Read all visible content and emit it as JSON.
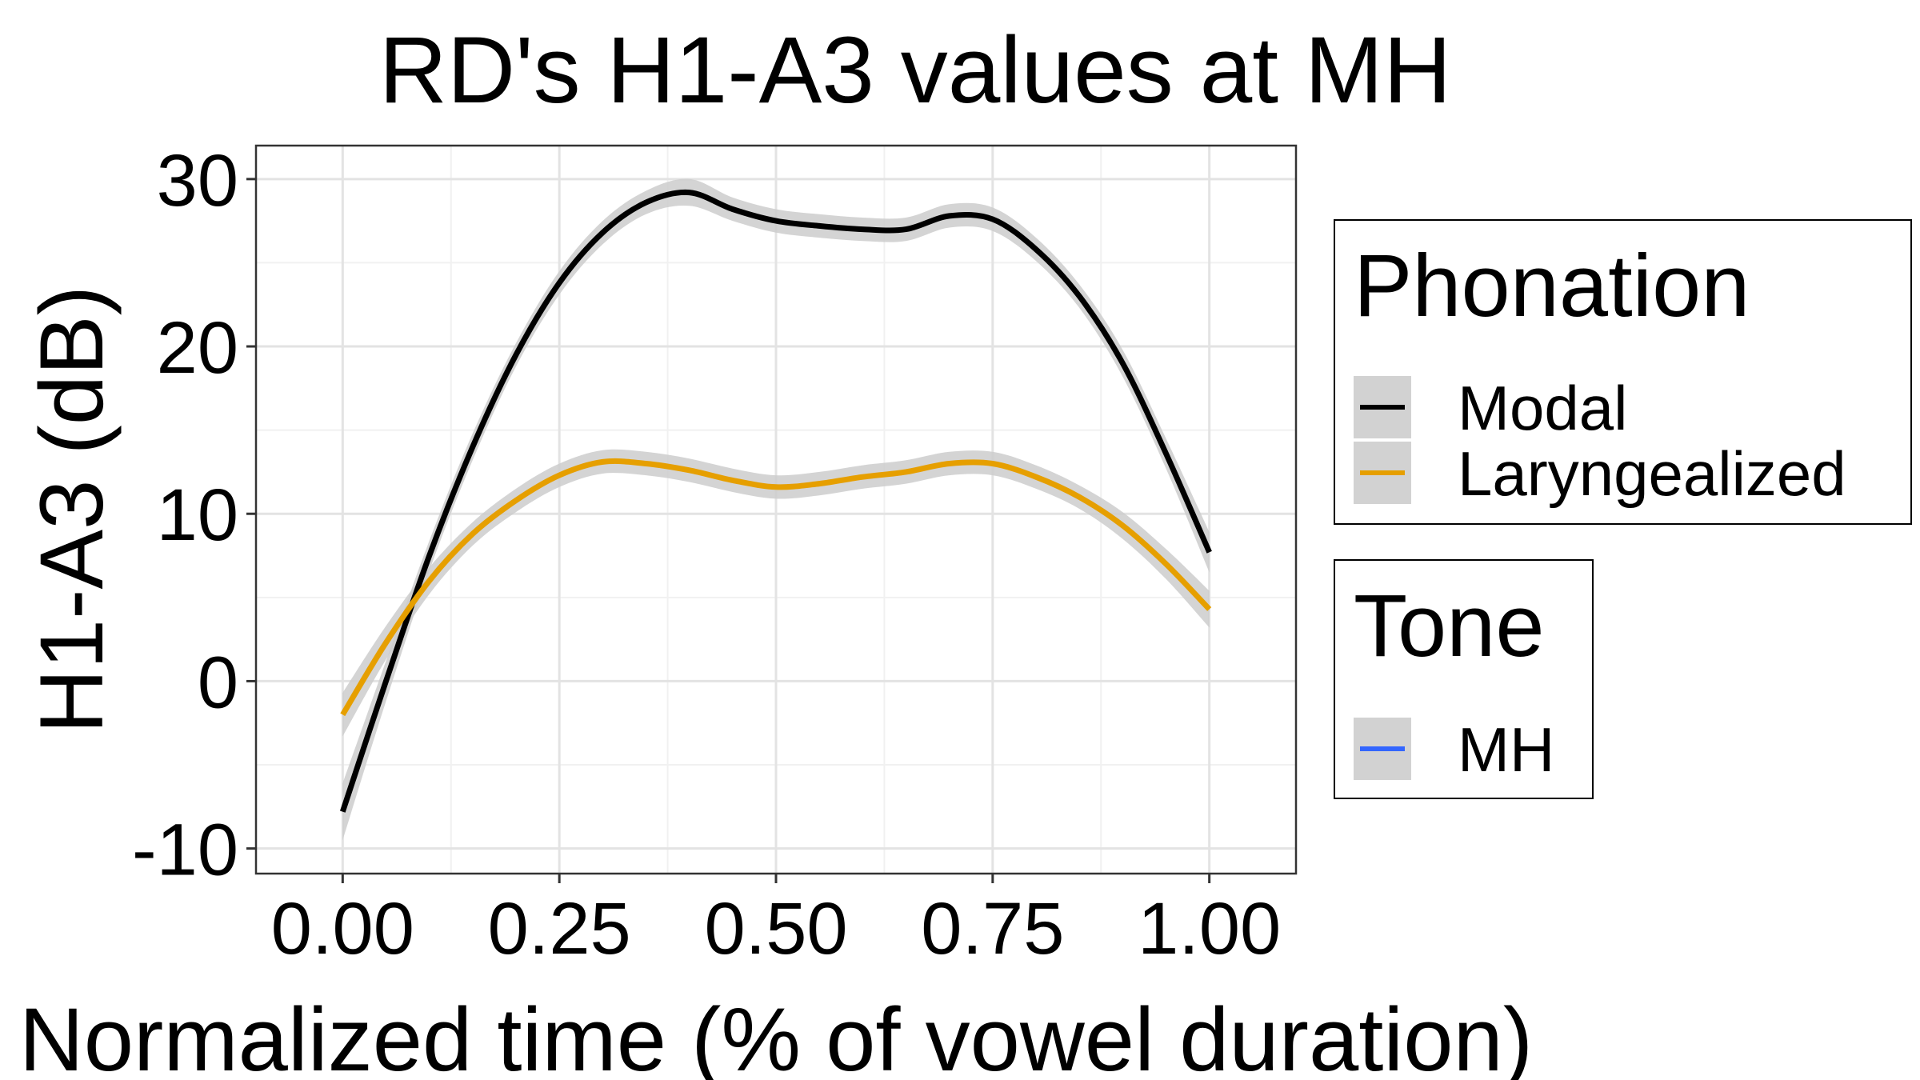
{
  "chart_data": {
    "type": "line",
    "title": "RD's H1-A3 values at MH",
    "xlabel": "Normalized time (% of vowel duration)",
    "ylabel": "H1-A3 (dB)",
    "xlim": [
      -0.1,
      1.1
    ],
    "ylim": [
      -11.5,
      32
    ],
    "x_ticks": [
      0.0,
      0.25,
      0.5,
      0.75,
      1.0
    ],
    "x_tick_labels": [
      "0.00",
      "0.25",
      "0.50",
      "0.75",
      "1.00"
    ],
    "y_ticks": [
      -10,
      0,
      10,
      20,
      30
    ],
    "y_tick_labels": [
      "-10",
      "0",
      "10",
      "20",
      "30"
    ],
    "grid": true,
    "series": [
      {
        "name": "Modal",
        "color": "#000000",
        "x": [
          0.0,
          0.05,
          0.1,
          0.15,
          0.2,
          0.25,
          0.3,
          0.35,
          0.4,
          0.45,
          0.5,
          0.55,
          0.6,
          0.65,
          0.7,
          0.75,
          0.8,
          0.85,
          0.9,
          0.95,
          1.0
        ],
        "y": [
          -7.8,
          0.0,
          7.5,
          14.0,
          19.5,
          23.8,
          26.8,
          28.6,
          29.2,
          28.2,
          27.5,
          27.2,
          27.0,
          27.0,
          27.8,
          27.6,
          25.8,
          23.0,
          19.0,
          13.6,
          7.7
        ],
        "ci": [
          1.7,
          1.2,
          0.9,
          0.8,
          0.7,
          0.7,
          0.7,
          0.7,
          0.8,
          0.7,
          0.7,
          0.7,
          0.7,
          0.7,
          0.7,
          0.7,
          0.7,
          0.7,
          0.8,
          0.9,
          1.2
        ]
      },
      {
        "name": "Laryngealized",
        "color": "#E69F00",
        "x": [
          0.0,
          0.05,
          0.1,
          0.15,
          0.2,
          0.25,
          0.3,
          0.35,
          0.4,
          0.45,
          0.5,
          0.55,
          0.6,
          0.65,
          0.7,
          0.75,
          0.8,
          0.85,
          0.9,
          0.95,
          1.0
        ],
        "y": [
          -2.0,
          2.3,
          6.0,
          8.8,
          10.8,
          12.3,
          13.1,
          13.0,
          12.6,
          12.0,
          11.6,
          11.8,
          12.2,
          12.5,
          13.0,
          13.0,
          12.2,
          11.0,
          9.3,
          7.0,
          4.3
        ],
        "ci": [
          1.3,
          1.0,
          0.8,
          0.7,
          0.7,
          0.7,
          0.7,
          0.7,
          0.7,
          0.7,
          0.7,
          0.7,
          0.7,
          0.7,
          0.7,
          0.7,
          0.7,
          0.7,
          0.8,
          0.9,
          1.1
        ]
      }
    ],
    "ci_color": "#CCCCCC",
    "legends": [
      {
        "title": "Phonation",
        "entries": [
          {
            "label": "Modal",
            "color": "#000000"
          },
          {
            "label": "Laryngealized",
            "color": "#E69F00"
          }
        ]
      },
      {
        "title": "Tone",
        "entries": [
          {
            "label": "MH",
            "color": "#3366FF"
          }
        ]
      }
    ],
    "legend_position": "right"
  }
}
